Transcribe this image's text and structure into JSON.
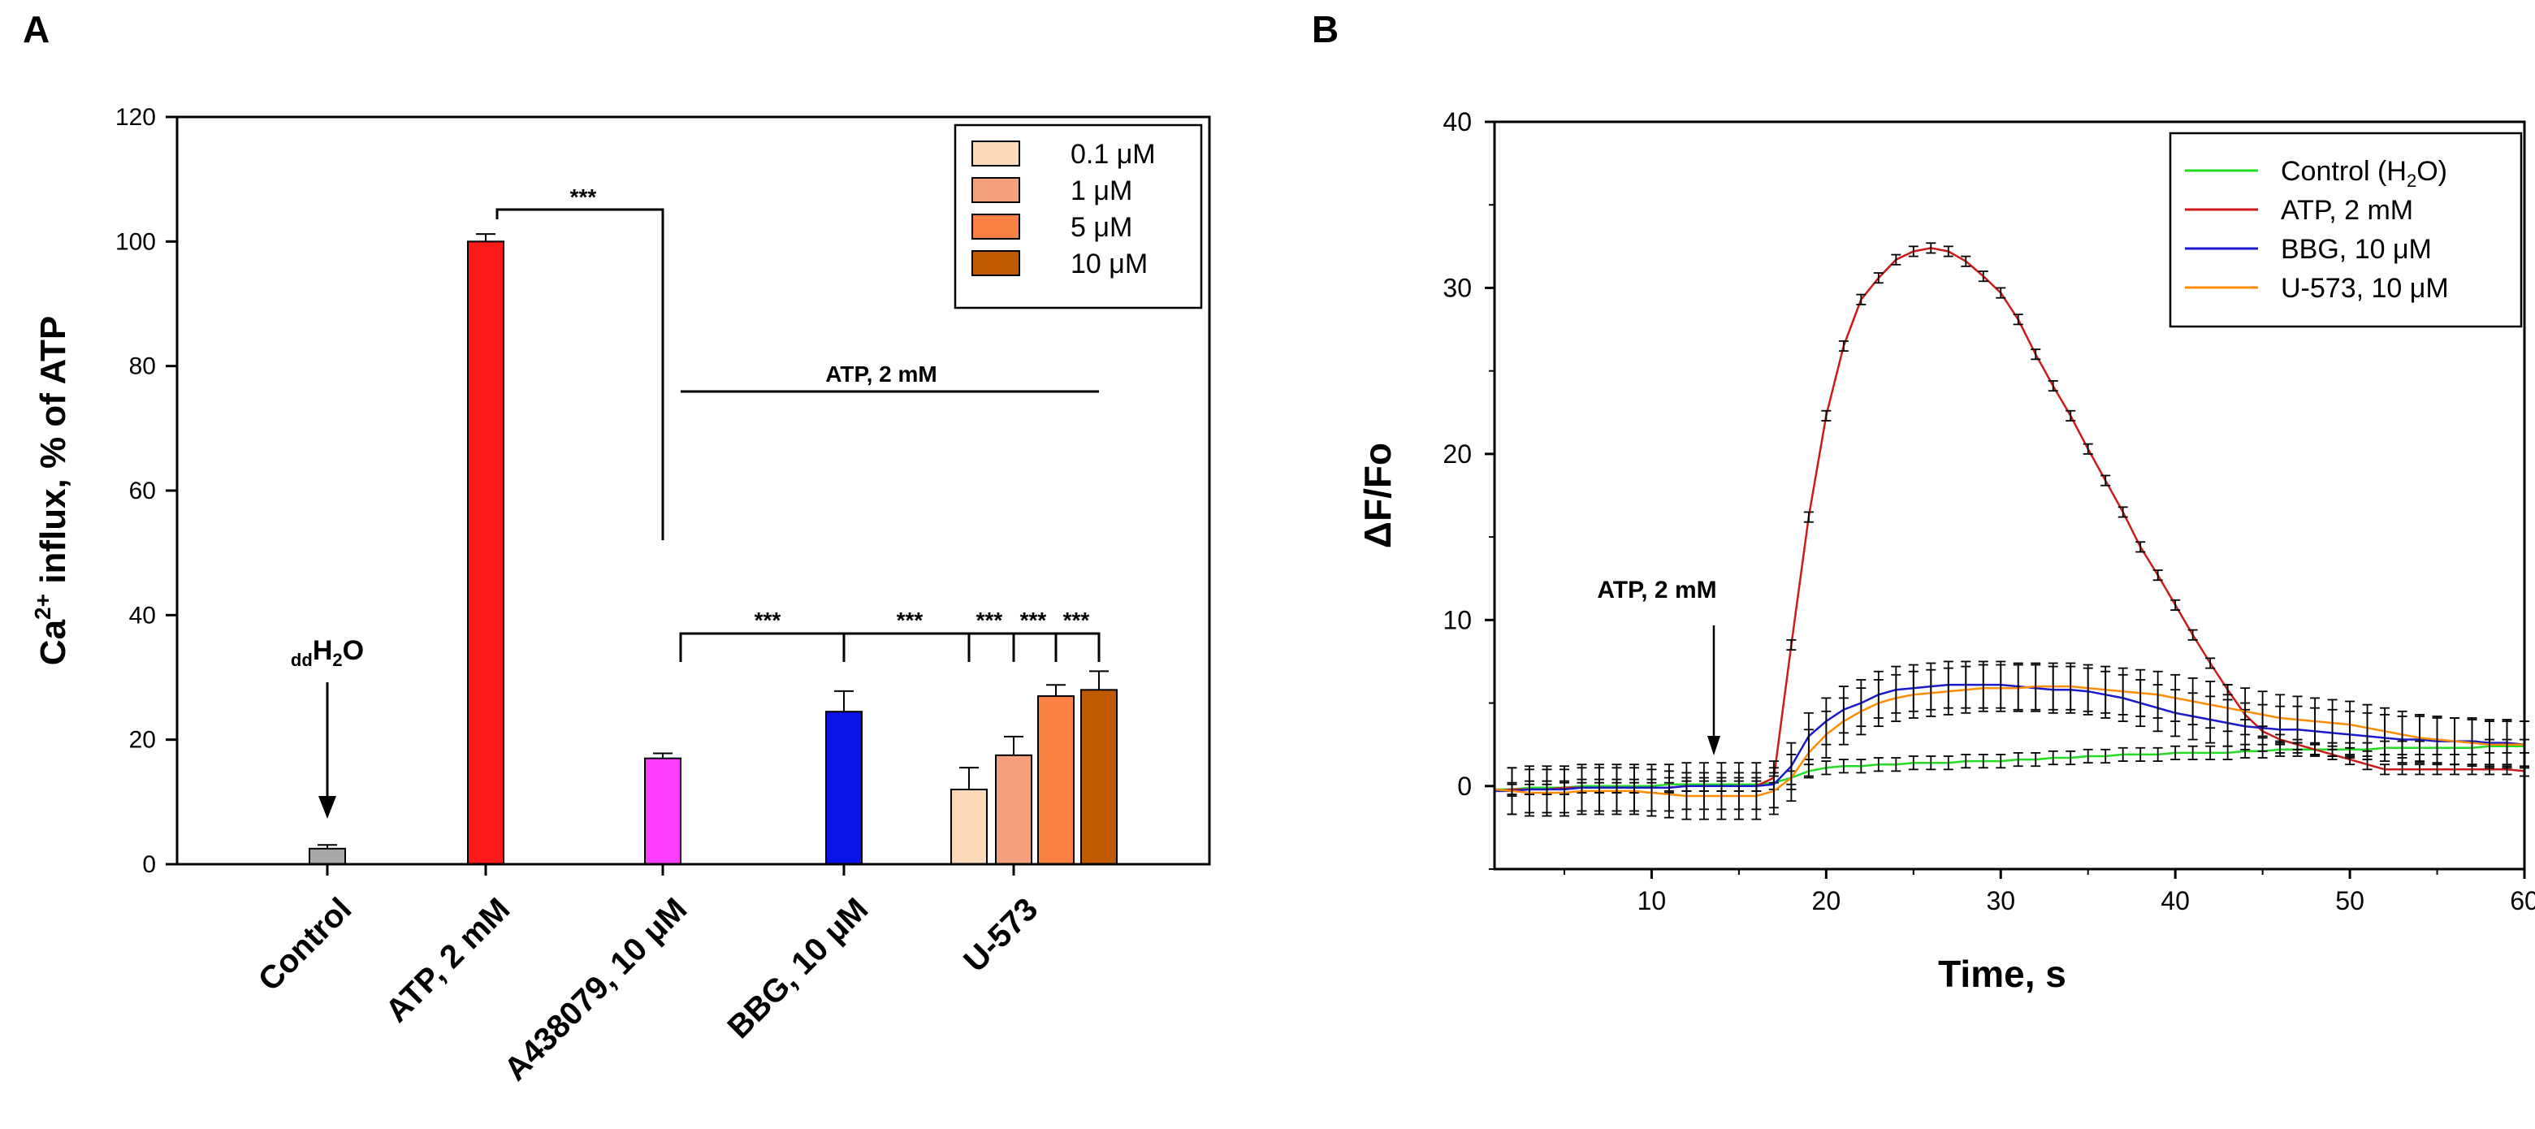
{
  "panels": {
    "a": "A",
    "b": "B"
  },
  "colors": {
    "control": "#a8a8a8",
    "atp": "#ff1a1a",
    "a438079": "#ff3dff",
    "bbg": "#0a14e6",
    "u573_0_1": "#fcd9b8",
    "u573_1": "#f5a07c",
    "u573_5": "#fb8142",
    "u573_10": "#c05a00",
    "line_control": "#22dd22",
    "line_atp": "#cc1a1a",
    "line_bbg": "#1a1acc",
    "line_u573": "#ff8c00"
  },
  "chart_data": [
    {
      "type": "bar",
      "panel": "A",
      "ylabel": "Ca2+ influx, % of ATP",
      "ylabel_parts": {
        "pre": "Ca",
        "sup": "2+",
        "post": " influx, % of ATP"
      },
      "ylim": [
        0,
        120
      ],
      "yticks": [
        0,
        20,
        40,
        60,
        80,
        100,
        120
      ],
      "categories": [
        "Control",
        "ATP, 2 mM",
        "A438079, 10 μM",
        "BBG, 10 μM",
        "U-573"
      ],
      "bars": [
        {
          "category": "Control",
          "value": 2.5,
          "error": 0.6,
          "color_key": "control"
        },
        {
          "category": "ATP, 2 mM",
          "value": 100,
          "error": 1.2,
          "color_key": "atp"
        },
        {
          "category": "A438079, 10 μM",
          "value": 17,
          "error": 0.8,
          "color_key": "a438079"
        },
        {
          "category": "BBG, 10 μM",
          "value": 24.5,
          "error": 3.3,
          "color_key": "bbg"
        },
        {
          "category": "U-573",
          "group": "0.1 μM",
          "value": 12,
          "error": 3.5,
          "color_key": "u573_0_1"
        },
        {
          "category": "U-573",
          "group": "1 μM",
          "value": 17.5,
          "error": 3.0,
          "color_key": "u573_1"
        },
        {
          "category": "U-573",
          "group": "5 μM",
          "value": 27,
          "error": 1.8,
          "color_key": "u573_5"
        },
        {
          "category": "U-573",
          "group": "10 μM",
          "value": 28,
          "error": 3.0,
          "color_key": "u573_10"
        }
      ],
      "legend": [
        {
          "label": "0.1 μM",
          "color_key": "u573_0_1"
        },
        {
          "label": "1 μM",
          "color_key": "u573_1"
        },
        {
          "label": "5 μM",
          "color_key": "u573_5"
        },
        {
          "label": "10 μM",
          "color_key": "u573_10"
        }
      ],
      "legend_position": "top-right",
      "annotations": {
        "ddh2o": {
          "sub": "dd",
          "main": "H",
          "sub2": "2",
          "tail": "O"
        },
        "atp_bracket_label": "ATP, 2 mM",
        "significance": [
          "***",
          "***",
          "***",
          "***",
          "***",
          "***"
        ]
      }
    },
    {
      "type": "line",
      "panel": "B",
      "xlabel": "Time, s",
      "ylabel": "ΔF/Fo",
      "xlim": [
        1,
        60
      ],
      "ylim": [
        -5,
        40
      ],
      "xticks": [
        10,
        20,
        30,
        40,
        50,
        60
      ],
      "yticks": [
        0,
        10,
        20,
        30,
        40
      ],
      "x": [
        1,
        2,
        3,
        4,
        5,
        6,
        7,
        8,
        9,
        10,
        11,
        12,
        13,
        14,
        15,
        16,
        17,
        18,
        19,
        20,
        21,
        22,
        23,
        24,
        25,
        26,
        27,
        28,
        29,
        30,
        31,
        32,
        33,
        34,
        35,
        36,
        37,
        38,
        39,
        40,
        41,
        42,
        43,
        44,
        45,
        46,
        47,
        48,
        49,
        50,
        51,
        52,
        53,
        54,
        55,
        56,
        57,
        58,
        59,
        60
      ],
      "series": [
        {
          "name": "Control (H2O)",
          "label_parts": {
            "pre": "Control (H",
            "sub": "2",
            "post": "O)"
          },
          "color_key": "line_control",
          "values": [
            -0.2,
            -0.2,
            -0.1,
            -0.1,
            -0.1,
            0,
            0,
            0,
            0,
            0,
            0.1,
            0.1,
            0.1,
            0.1,
            0.1,
            0.1,
            0.2,
            0.5,
            0.9,
            1.1,
            1.2,
            1.2,
            1.3,
            1.3,
            1.4,
            1.4,
            1.4,
            1.5,
            1.5,
            1.5,
            1.6,
            1.6,
            1.7,
            1.7,
            1.8,
            1.8,
            1.9,
            1.9,
            1.9,
            2.0,
            2.0,
            2.0,
            2.0,
            2.1,
            2.1,
            2.2,
            2.2,
            2.2,
            2.2,
            2.2,
            2.2,
            2.3,
            2.3,
            2.3,
            2.3,
            2.3,
            2.3,
            2.4,
            2.4,
            2.4
          ],
          "error": 0.4
        },
        {
          "name": "ATP, 2 mM",
          "label_parts": {
            "pre": "ATP, 2 mM",
            "sub": "",
            "post": ""
          },
          "color_key": "line_atp",
          "values": [
            -0.3,
            -0.2,
            -0.2,
            -0.2,
            -0.1,
            -0.1,
            -0.1,
            -0.1,
            -0.1,
            -0.1,
            -0.1,
            0,
            0,
            0,
            0,
            0,
            0.5,
            8.5,
            16.2,
            22.3,
            26.5,
            29.3,
            30.6,
            31.7,
            32.2,
            32.4,
            32.2,
            31.6,
            30.7,
            29.7,
            28.1,
            26.0,
            24.1,
            22.3,
            20.3,
            18.4,
            16.5,
            14.4,
            12.7,
            10.9,
            9.1,
            7.4,
            5.8,
            4.3,
            3.3,
            2.8,
            2.5,
            2.2,
            1.9,
            1.6,
            1.3,
            1.0,
            1.0,
            1.0,
            1.0,
            1.0,
            1.0,
            1.0,
            1.0,
            0.9
          ],
          "error": 0.3
        },
        {
          "name": "BBG, 10 μM",
          "label_parts": {
            "pre": "BBG, 10 μM",
            "sub": "",
            "post": ""
          },
          "color_key": "line_bbg",
          "values": [
            -0.3,
            -0.3,
            -0.2,
            -0.2,
            -0.2,
            -0.1,
            -0.1,
            -0.1,
            -0.1,
            -0.1,
            -0.1,
            0,
            0,
            0,
            0,
            0,
            0.1,
            1.2,
            3.0,
            3.9,
            4.6,
            5.0,
            5.5,
            5.8,
            5.9,
            6.0,
            6.1,
            6.1,
            6.1,
            6.1,
            6.0,
            5.9,
            5.8,
            5.8,
            5.7,
            5.5,
            5.3,
            5.0,
            4.7,
            4.4,
            4.2,
            4.0,
            3.8,
            3.6,
            3.5,
            3.4,
            3.4,
            3.3,
            3.2,
            3.1,
            3.0,
            2.9,
            2.8,
            2.8,
            2.7,
            2.7,
            2.7,
            2.6,
            2.6,
            2.5
          ],
          "error": 1.4
        },
        {
          "name": "U-573, 10 μM",
          "label_parts": {
            "pre": "U-573, 10 μM",
            "sub": "",
            "post": ""
          },
          "color_key": "line_u573",
          "values": [
            -0.2,
            -0.3,
            -0.4,
            -0.4,
            -0.4,
            -0.3,
            -0.3,
            -0.3,
            -0.3,
            -0.4,
            -0.5,
            -0.6,
            -0.6,
            -0.6,
            -0.6,
            -0.6,
            -0.3,
            0.5,
            2.0,
            3.1,
            3.9,
            4.5,
            5.0,
            5.3,
            5.5,
            5.6,
            5.7,
            5.8,
            5.9,
            5.9,
            5.9,
            6.0,
            6.0,
            6.0,
            5.9,
            5.8,
            5.7,
            5.6,
            5.5,
            5.3,
            5.1,
            4.9,
            4.7,
            4.5,
            4.3,
            4.1,
            4.0,
            3.9,
            3.8,
            3.7,
            3.5,
            3.3,
            3.1,
            2.9,
            2.8,
            2.7,
            2.6,
            2.5,
            2.5,
            2.5
          ],
          "error": 1.4
        }
      ],
      "legend_position": "top-right",
      "annotations": {
        "arrow_label": "ATP, 2 mM",
        "arrow_x": 14
      }
    }
  ]
}
